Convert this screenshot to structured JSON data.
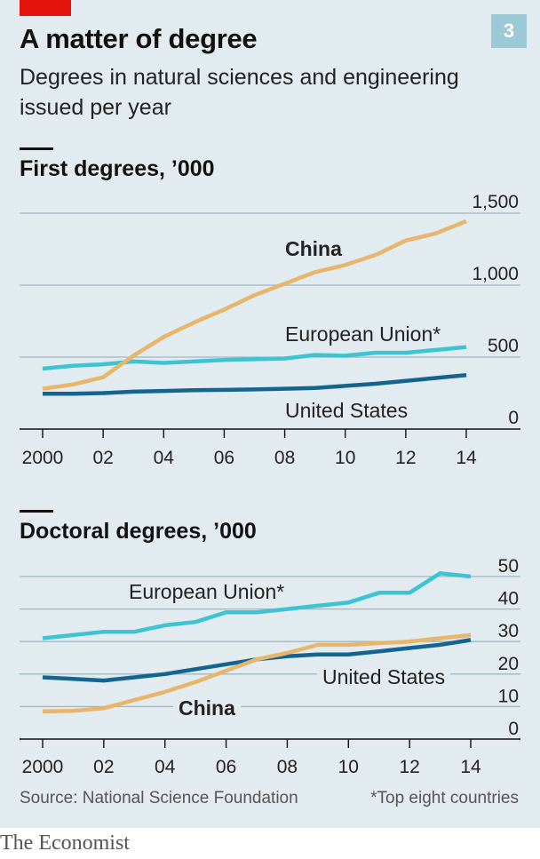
{
  "header": {
    "title": "A matter of degree",
    "subtitle": "Degrees in natural sciences and engineering issued per year",
    "badge": "3"
  },
  "colors": {
    "china": "#e8b66a",
    "eu": "#3ec3d3",
    "us": "#14648f",
    "grid": "#9fb7c2",
    "axis": "#111111",
    "background": "#e1ebf0",
    "brand_red": "#e3120b"
  },
  "chart_data": [
    {
      "type": "line",
      "title": "First degrees, ’000",
      "x": [
        2000,
        2001,
        2002,
        2003,
        2004,
        2005,
        2006,
        2007,
        2008,
        2009,
        2010,
        2011,
        2012,
        2013,
        2014
      ],
      "xticks": [
        2000,
        2002,
        2004,
        2006,
        2008,
        2010,
        2012,
        2014
      ],
      "xtick_labels": [
        "2000",
        "02",
        "04",
        "06",
        "08",
        "10",
        "12",
        "14"
      ],
      "yticks": [
        0,
        500,
        1000,
        1500
      ],
      "ytick_labels": [
        "0",
        "500",
        "1,000",
        "1,500"
      ],
      "ylim": [
        0,
        1500
      ],
      "grid": true,
      "series": [
        {
          "name": "China",
          "key": "china",
          "bold": true,
          "values": [
            280,
            310,
            360,
            510,
            640,
            740,
            830,
            930,
            1010,
            1090,
            1140,
            1210,
            1310,
            1360,
            1445
          ]
        },
        {
          "name": "European Union*",
          "key": "eu",
          "bold": false,
          "values": [
            420,
            440,
            450,
            470,
            460,
            470,
            480,
            485,
            490,
            515,
            510,
            530,
            530,
            550,
            570
          ]
        },
        {
          "name": "United States",
          "key": "us",
          "bold": false,
          "values": [
            245,
            245,
            250,
            260,
            265,
            270,
            272,
            275,
            280,
            285,
            300,
            315,
            335,
            355,
            375
          ]
        }
      ]
    },
    {
      "type": "line",
      "title": "Doctoral degrees, ’000",
      "x": [
        2000,
        2001,
        2002,
        2003,
        2004,
        2005,
        2006,
        2007,
        2008,
        2009,
        2010,
        2011,
        2012,
        2013,
        2014
      ],
      "xticks": [
        2000,
        2002,
        2004,
        2006,
        2008,
        2010,
        2012,
        2014
      ],
      "xtick_labels": [
        "2000",
        "02",
        "04",
        "06",
        "08",
        "10",
        "12",
        "14"
      ],
      "yticks": [
        0,
        10,
        20,
        30,
        40,
        50
      ],
      "ytick_labels": [
        "0",
        "10",
        "20",
        "30",
        "40",
        "50"
      ],
      "ylim": [
        0,
        50
      ],
      "grid": true,
      "series": [
        {
          "name": "European Union*",
          "key": "eu",
          "bold": false,
          "values": [
            31,
            32,
            33,
            33,
            35,
            36,
            39,
            39,
            40,
            41,
            42,
            45,
            45,
            51,
            50
          ]
        },
        {
          "name": "United States",
          "key": "us",
          "bold": false,
          "values": [
            19,
            18.5,
            18,
            19,
            20,
            21.5,
            23,
            24.5,
            25.5,
            26,
            26,
            27,
            28,
            29,
            30.5
          ]
        },
        {
          "name": "China",
          "key": "china",
          "bold": true,
          "values": [
            8.5,
            8.7,
            9.5,
            12,
            14.5,
            17.5,
            21,
            24.5,
            26.5,
            29,
            29,
            29.5,
            30,
            31,
            32
          ]
        }
      ]
    }
  ],
  "footer": {
    "source": "Source: National Science Foundation",
    "footnote": "*Top eight countries",
    "publisher": "The Economist"
  }
}
